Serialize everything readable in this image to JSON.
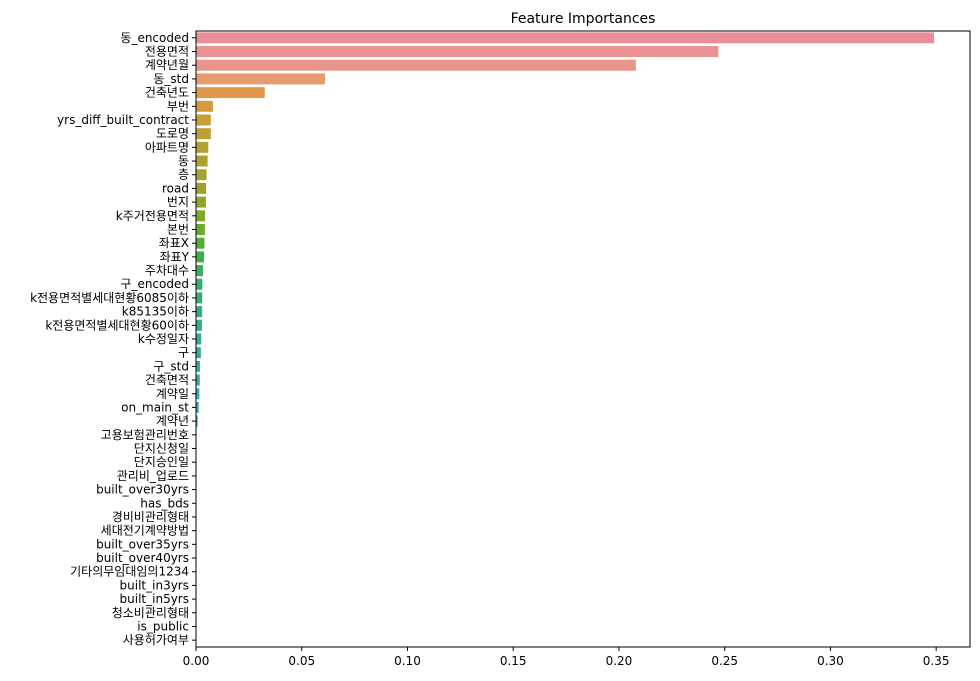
{
  "chart_data": {
    "type": "bar",
    "orientation": "horizontal",
    "title": "Feature Importances",
    "xlabel": "",
    "ylabel": "",
    "xlim": [
      0,
      0.366
    ],
    "xticks": [
      "0.00",
      "0.05",
      "0.10",
      "0.15",
      "0.20",
      "0.25",
      "0.30",
      "0.35"
    ],
    "xtick_values": [
      0,
      0.05,
      0.1,
      0.15,
      0.2,
      0.25,
      0.3,
      0.35
    ],
    "grid": false,
    "categories": [
      "동_encoded",
      "전용면적",
      "계약년월",
      "동_std",
      "건축년도",
      "부번",
      "yrs_diff_built_contract",
      "도로명",
      "아파트명",
      "동",
      "층",
      "road",
      "번지",
      "k주거전용면적",
      "본번",
      "좌표X",
      "좌표Y",
      "주차대수",
      "구_encoded",
      "k전용면적별세대현황6085이하",
      "k85135이하",
      "k전용면적별세대현황60이하",
      "k수정일자",
      "구",
      "구_std",
      "건축면적",
      "계약일",
      "on_main_st",
      "계약년",
      "고용보험관리번호",
      "단지신청일",
      "단지승인일",
      "관리비_업로드",
      "built_over30yrs",
      "has_bds",
      "경비비관리형태",
      "세대전기계약방법",
      "built_over35yrs",
      "built_over40yrs",
      "기타의무임대임의1234",
      "built_in3yrs",
      "built_in5yrs",
      "청소비관리형태",
      "is_public",
      "사용허가여부"
    ],
    "values": [
      0.349,
      0.247,
      0.208,
      0.061,
      0.0325,
      0.008,
      0.007,
      0.007,
      0.0058,
      0.0055,
      0.005,
      0.0048,
      0.0047,
      0.0043,
      0.0042,
      0.004,
      0.0038,
      0.0033,
      0.003,
      0.0029,
      0.0029,
      0.0028,
      0.0025,
      0.0023,
      0.0019,
      0.0018,
      0.0016,
      0.0013,
      0.0008,
      0.0001,
      0.0,
      0.0,
      0.0,
      0.0,
      0.0,
      0.0,
      0.0,
      0.0,
      0.0,
      0.0,
      0.0,
      0.0,
      0.0,
      0.0,
      0.0
    ],
    "colors": [
      "#ea8f99",
      "#ea9293",
      "#e9968a",
      "#e59a70",
      "#e0994c",
      "#d49a3c",
      "#c99d38",
      "#c09e36",
      "#b7a033",
      "#afa130",
      "#a6a22e",
      "#9ca42b",
      "#8fa62a",
      "#7ea82a",
      "#6aab2e",
      "#53ad3a",
      "#3fae4a",
      "#35ae5e",
      "#34ae6e",
      "#35ad7a",
      "#36ac84",
      "#37ab8c",
      "#38aa94",
      "#39aa9b",
      "#3aa9a2",
      "#3ba8a9",
      "#3da8b0",
      "#3fa7b9",
      "#42a6c3",
      "#46a4cf",
      "#52a0dc",
      "#629ce6",
      "#7797ec",
      "#8b91ef",
      "#9c8bef",
      "#ab86ef",
      "#b982ee",
      "#c67eec",
      "#d279e6",
      "#dd75de",
      "#e371d3",
      "#e670c7",
      "#e872bb",
      "#e976af",
      "#ea7aa4"
    ]
  }
}
